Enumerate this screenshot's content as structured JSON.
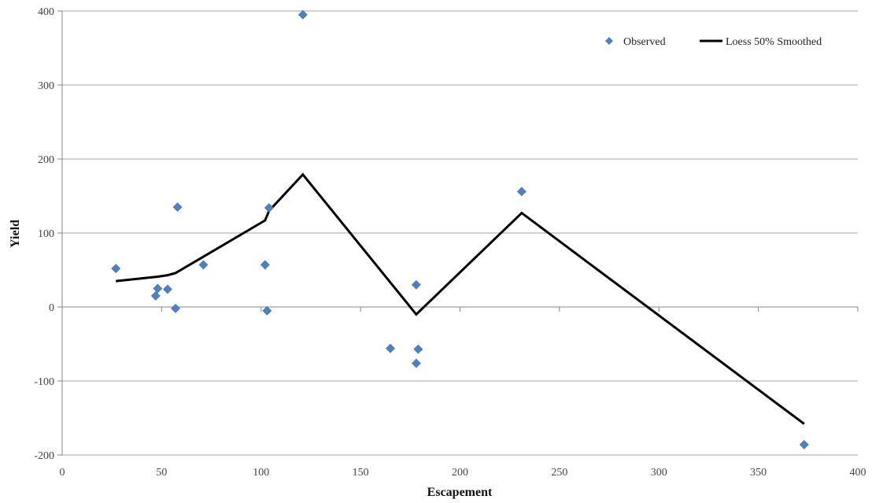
{
  "chart_data": {
    "type": "scatter",
    "xlabel": "Escapement",
    "ylabel": "Yield",
    "xlim": [
      0,
      400
    ],
    "ylim": [
      -200,
      400
    ],
    "xticks": [
      0,
      50,
      100,
      150,
      200,
      250,
      300,
      350,
      400
    ],
    "yticks": [
      -200,
      -100,
      0,
      100,
      200,
      300,
      400
    ],
    "grid": "horizontal",
    "legend_position": "top-right",
    "colors": {
      "observed": "#4f81bd",
      "smoothed": "#000000",
      "grid": "#a6a6a6"
    },
    "series": [
      {
        "name": "Observed",
        "type": "scatter",
        "points": [
          [
            27,
            52
          ],
          [
            47,
            15
          ],
          [
            48,
            25
          ],
          [
            53,
            24
          ],
          [
            57,
            -2
          ],
          [
            58,
            135
          ],
          [
            71,
            57
          ],
          [
            102,
            57
          ],
          [
            103,
            -5
          ],
          [
            104,
            134
          ],
          [
            121,
            395
          ],
          [
            165,
            -56
          ],
          [
            178,
            -76
          ],
          [
            178,
            30
          ],
          [
            179,
            -57
          ],
          [
            231,
            156
          ],
          [
            373,
            -186
          ]
        ]
      },
      {
        "name": "Loess 50% Smoothed",
        "type": "line",
        "points": [
          [
            27,
            35
          ],
          [
            48,
            41
          ],
          [
            53,
            43
          ],
          [
            57,
            46
          ],
          [
            71,
            68
          ],
          [
            102,
            117
          ],
          [
            104,
            130
          ],
          [
            121,
            179
          ],
          [
            178,
            -10
          ],
          [
            231,
            127
          ],
          [
            373,
            -158
          ]
        ]
      }
    ]
  }
}
